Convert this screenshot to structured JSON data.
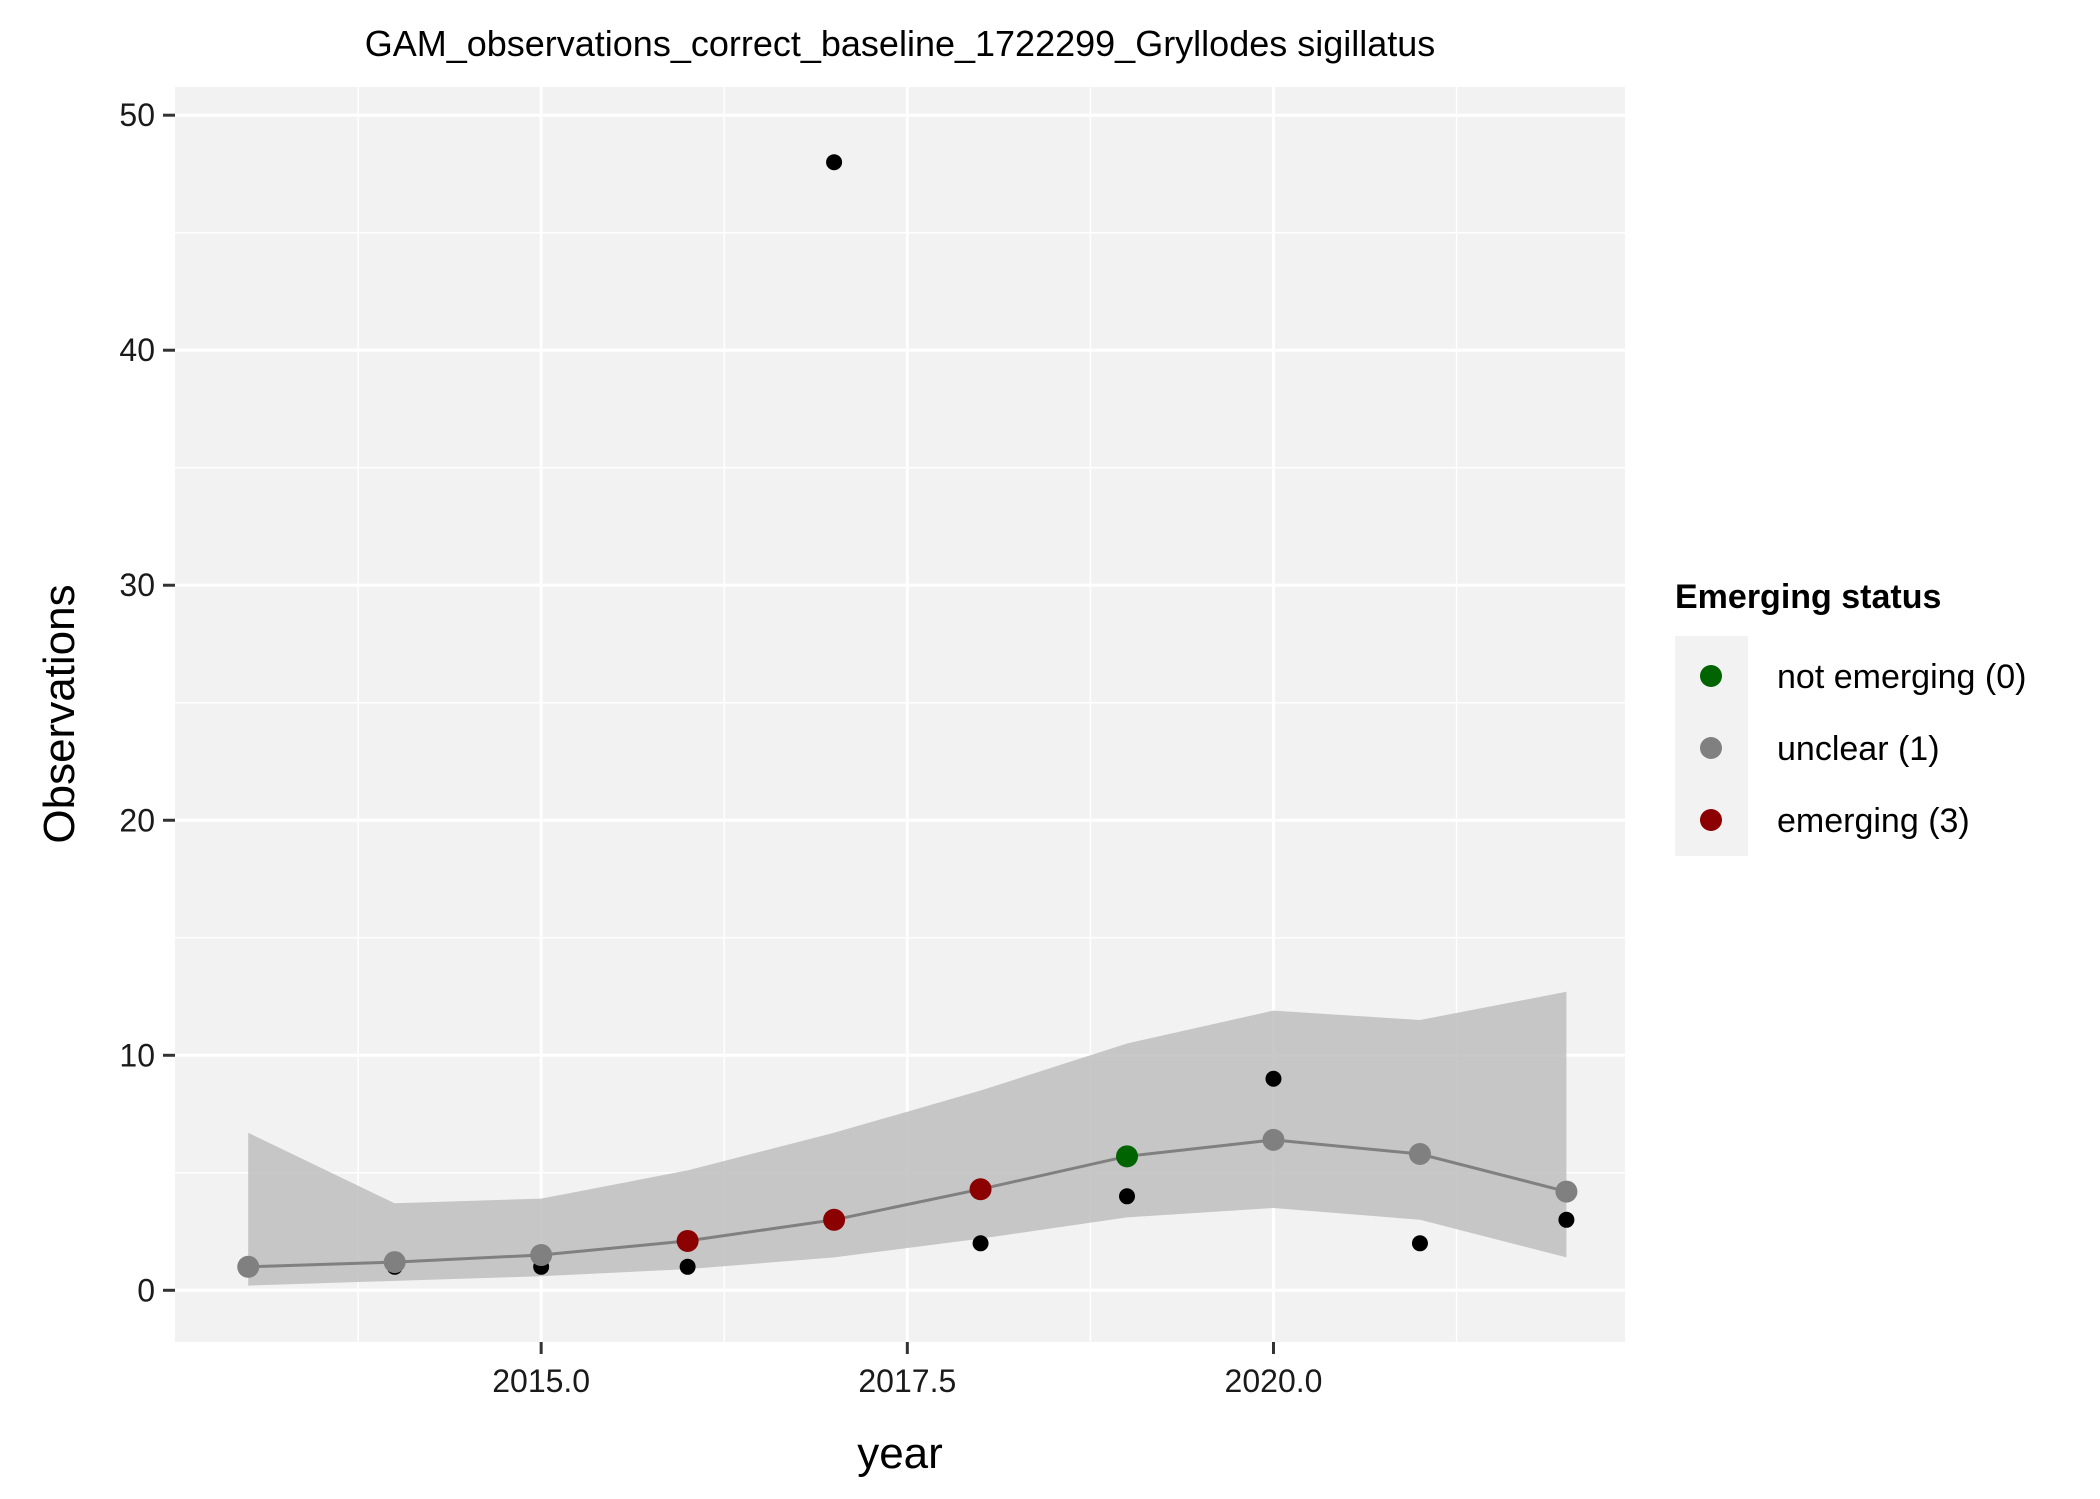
{
  "chart_data": {
    "type": "scatter",
    "title": "GAM_observations_correct_baseline_1722299_Gryllodes sigillatus",
    "xlabel": "year",
    "ylabel": "Observations",
    "xlim": [
      2012.5,
      2022.4
    ],
    "ylim": [
      -2.2,
      51.2
    ],
    "x_ticks": [
      2015,
      2017.5,
      2020
    ],
    "x_tick_labels": [
      "2015.0",
      "2017.5",
      "2020.0"
    ],
    "y_ticks": [
      0,
      10,
      20,
      30,
      40,
      50
    ],
    "y_tick_labels": [
      "0",
      "10",
      "20",
      "30",
      "40",
      "50"
    ],
    "grid": true,
    "legend": {
      "title": "Emerging status",
      "placement": "right",
      "entries": [
        {
          "label": "not emerging (0)",
          "color": "#006400"
        },
        {
          "label": "unclear (1)",
          "color": "#808080"
        },
        {
          "label": "emerging (3)",
          "color": "#8b0000"
        }
      ]
    },
    "observed": {
      "color": "#000000",
      "points": [
        {
          "x": 2014,
          "y": 1
        },
        {
          "x": 2015,
          "y": 1
        },
        {
          "x": 2016,
          "y": 1
        },
        {
          "x": 2017,
          "y": 48
        },
        {
          "x": 2018,
          "y": 2
        },
        {
          "x": 2019,
          "y": 4
        },
        {
          "x": 2020,
          "y": 9
        },
        {
          "x": 2021,
          "y": 2
        },
        {
          "x": 2022,
          "y": 3
        }
      ]
    },
    "fit": {
      "line_color": "#808080",
      "band_color": "#bebebe",
      "points": [
        {
          "x": 2013,
          "y": 1.0,
          "lower": 0.2,
          "upper": 6.7,
          "status": "unclear (1)"
        },
        {
          "x": 2014,
          "y": 1.2,
          "lower": 0.4,
          "upper": 3.7,
          "status": "unclear (1)"
        },
        {
          "x": 2015,
          "y": 1.5,
          "lower": 0.6,
          "upper": 3.9,
          "status": "unclear (1)"
        },
        {
          "x": 2016,
          "y": 2.1,
          "lower": 0.9,
          "upper": 5.1,
          "status": "emerging (3)"
        },
        {
          "x": 2017,
          "y": 3.0,
          "lower": 1.4,
          "upper": 6.7,
          "status": "emerging (3)"
        },
        {
          "x": 2018,
          "y": 4.3,
          "lower": 2.2,
          "upper": 8.5,
          "status": "emerging (3)"
        },
        {
          "x": 2019,
          "y": 5.7,
          "lower": 3.1,
          "upper": 10.5,
          "status": "not emerging (0)"
        },
        {
          "x": 2020,
          "y": 6.4,
          "lower": 3.5,
          "upper": 11.9,
          "status": "unclear (1)"
        },
        {
          "x": 2021,
          "y": 5.8,
          "lower": 3.0,
          "upper": 11.5,
          "status": "unclear (1)"
        },
        {
          "x": 2022,
          "y": 4.2,
          "lower": 1.4,
          "upper": 12.7,
          "status": "unclear (1)"
        }
      ]
    }
  }
}
